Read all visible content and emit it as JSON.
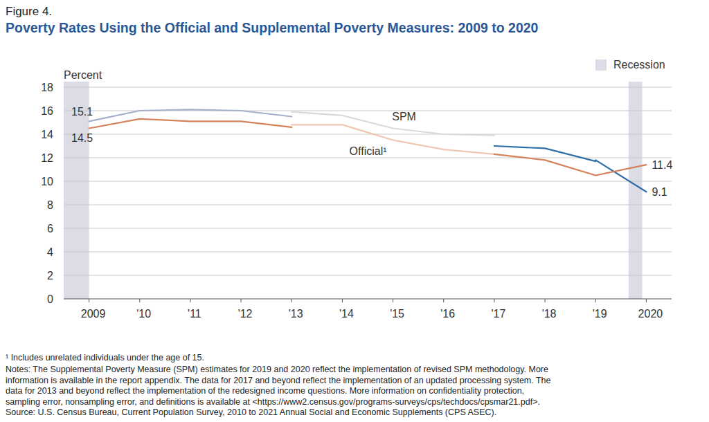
{
  "chart_data": {
    "type": "line",
    "figure_label": "Figure 4.",
    "title": "Poverty Rates Using the Official and Supplemental Poverty Measures: 2009 to 2020",
    "ylabel": "Percent",
    "x": [
      2009,
      2010,
      2011,
      2012,
      2013,
      2014,
      2015,
      2016,
      2017,
      2018,
      2019,
      2020
    ],
    "xlim": [
      2008.5,
      2020.5
    ],
    "xticks": [
      {
        "value": 2009,
        "label": "2009"
      },
      {
        "value": 2010,
        "label": "'10"
      },
      {
        "value": 2011,
        "label": "'11"
      },
      {
        "value": 2012,
        "label": "'12"
      },
      {
        "value": 2013,
        "label": "'13"
      },
      {
        "value": 2014,
        "label": "'14"
      },
      {
        "value": 2015,
        "label": "'15"
      },
      {
        "value": 2016,
        "label": "'16"
      },
      {
        "value": 2017,
        "label": "'17"
      },
      {
        "value": 2018,
        "label": "'18"
      },
      {
        "value": 2019,
        "label": "'19"
      },
      {
        "value": 2020,
        "label": "2020"
      }
    ],
    "ylim": [
      0,
      18
    ],
    "yticks": [
      0,
      2,
      4,
      6,
      8,
      10,
      12,
      14,
      16,
      18
    ],
    "grid": true,
    "recession_label": "Recession",
    "recessions": [
      {
        "start": 2008.5,
        "end": 2009
      },
      {
        "start": 2019.65,
        "end": 2019.92
      }
    ],
    "series": [
      {
        "color": "#a3afcb",
        "values": [
          15.1,
          16.0,
          16.1,
          16.0,
          15.5,
          null,
          null,
          null,
          null,
          null,
          null,
          null
        ],
        "value_labels": [
          "15.1",
          null,
          null,
          null,
          null,
          null,
          null,
          null,
          null,
          null,
          null,
          null
        ]
      },
      {
        "name": "SPM",
        "color": "#d9d9de",
        "values": [
          null,
          null,
          null,
          null,
          15.9,
          15.6,
          14.5,
          14.0,
          13.9,
          null,
          null,
          null
        ]
      },
      {
        "color": "#2f6ea6",
        "values": [
          null,
          null,
          null,
          null,
          null,
          null,
          null,
          null,
          13.0,
          12.8,
          11.7,
          null
        ]
      },
      {
        "color": "#2f6ea6",
        "values": [
          null,
          null,
          null,
          null,
          null,
          null,
          null,
          null,
          null,
          null,
          11.8,
          9.1
        ],
        "value_labels": [
          null,
          null,
          null,
          null,
          null,
          null,
          null,
          null,
          null,
          null,
          null,
          "9.1"
        ]
      },
      {
        "color": "#d4825a",
        "values": [
          14.5,
          15.3,
          15.1,
          15.1,
          14.6,
          null,
          null,
          null,
          null,
          null,
          null,
          null
        ],
        "value_labels": [
          "14.5",
          null,
          null,
          null,
          null,
          null,
          null,
          null,
          null,
          null,
          null,
          null
        ]
      },
      {
        "name": "Official¹",
        "color": "#f0c6b1",
        "values": [
          null,
          null,
          null,
          null,
          14.8,
          14.8,
          13.5,
          12.7,
          12.3,
          null,
          null,
          null
        ]
      },
      {
        "color": "#d4825a",
        "values": [
          null,
          null,
          null,
          null,
          null,
          null,
          null,
          null,
          12.3,
          11.8,
          10.5,
          11.4
        ],
        "value_labels": [
          null,
          null,
          null,
          null,
          null,
          null,
          null,
          null,
          null,
          null,
          null,
          "11.4"
        ]
      }
    ],
    "footnote": "¹ Includes unrelated individuals under the age of 15.",
    "notes": [
      "Notes: The Supplemental Poverty Measure (SPM) estimates for 2019 and 2020 reflect the implementation of revised SPM methodology. More",
      "information is available in the report appendix. The data for 2017 and beyond reflect the implementation of an updated processing system. The",
      "data for 2013 and beyond reflect the implementation of the redesigned income questions. More information on confidentiality protection,",
      "sampling error, nonsampling error, and definitions is available at <https://www2.census.gov/programs-surveys/cps/techdocs/cpsmar21.pdf>."
    ],
    "source": "Source: U.S. Census Bureau, Current Population Survey, 2010 to 2021 Annual Social and Economic Supplements (CPS ASEC)."
  }
}
